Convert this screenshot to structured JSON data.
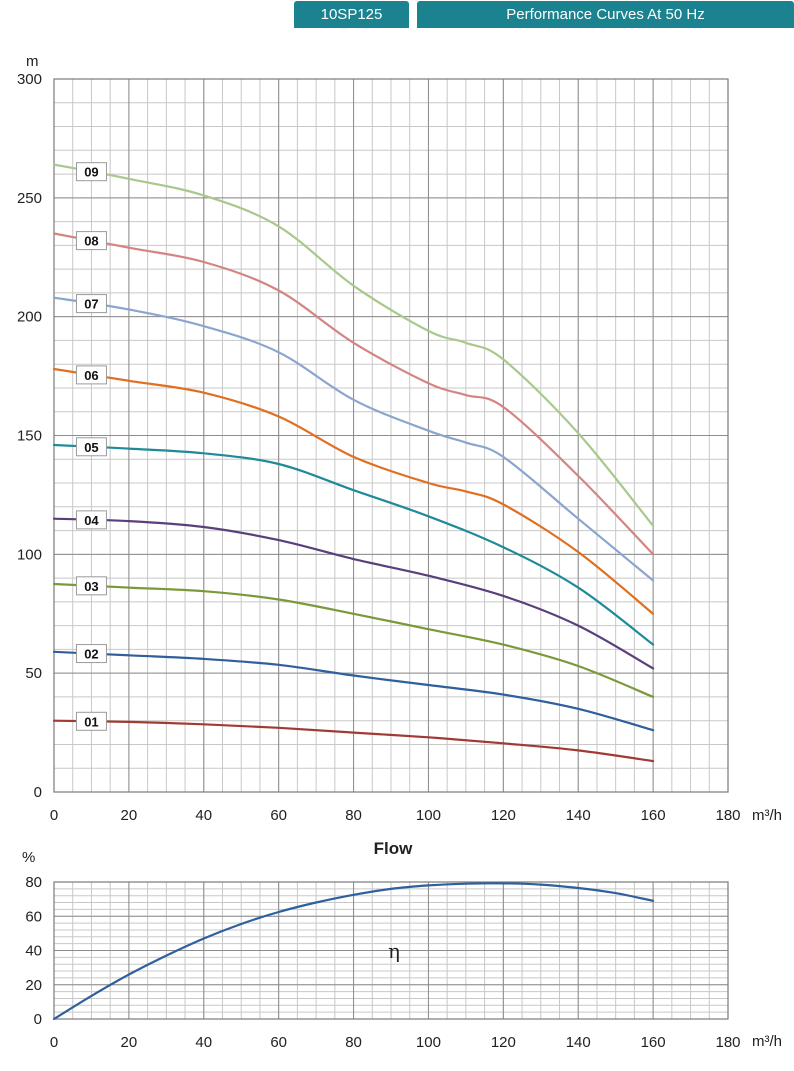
{
  "header": {
    "model": "10SP125",
    "title": "Performance Curves At 50 Hz"
  },
  "chart_data": [
    {
      "type": "line",
      "xlabel": "Flow",
      "x_unit": "m³/h",
      "y_unit": "m",
      "xlim": [
        0,
        180
      ],
      "ylim": [
        0,
        300
      ],
      "x_ticks": [
        0,
        20,
        40,
        60,
        80,
        100,
        120,
        140,
        160,
        180
      ],
      "y_ticks": [
        0,
        50,
        100,
        150,
        200,
        250,
        300
      ],
      "grid": true,
      "series": [
        {
          "name": "01",
          "color": "#a23a34",
          "x": [
            0,
            20,
            40,
            60,
            80,
            100,
            120,
            140,
            160
          ],
          "y": [
            30,
            29.5,
            28.5,
            27,
            25,
            23,
            20.5,
            17.5,
            13
          ]
        },
        {
          "name": "02",
          "color": "#2f5f9c",
          "x": [
            0,
            20,
            40,
            60,
            80,
            100,
            120,
            140,
            160
          ],
          "y": [
            59,
            57.5,
            56,
            53.5,
            49,
            45,
            41,
            35,
            26
          ]
        },
        {
          "name": "03",
          "color": "#7a9a3a",
          "x": [
            0,
            20,
            40,
            60,
            80,
            100,
            120,
            140,
            160
          ],
          "y": [
            87.5,
            86,
            84.5,
            81,
            75,
            68.5,
            62,
            53,
            40
          ]
        },
        {
          "name": "04",
          "color": "#5a3f7c",
          "x": [
            0,
            20,
            40,
            60,
            80,
            100,
            120,
            140,
            160
          ],
          "y": [
            115,
            114,
            111.5,
            106,
            98,
            91,
            82.5,
            70,
            52
          ]
        },
        {
          "name": "05",
          "color": "#1f8a9a",
          "x": [
            0,
            20,
            40,
            60,
            80,
            100,
            120,
            140,
            160
          ],
          "y": [
            146,
            144.5,
            142.5,
            138,
            127,
            116,
            103,
            86,
            62
          ]
        },
        {
          "name": "06",
          "color": "#e06f1f",
          "x": [
            0,
            20,
            40,
            60,
            80,
            100,
            110,
            120,
            140,
            160
          ],
          "y": [
            178,
            173,
            168,
            158,
            141,
            130,
            126.5,
            121,
            101,
            75
          ]
        },
        {
          "name": "07",
          "color": "#8aa6cf",
          "x": [
            0,
            20,
            40,
            60,
            80,
            100,
            110,
            120,
            140,
            160
          ],
          "y": [
            208,
            203,
            196,
            185,
            165,
            152,
            147,
            141,
            115,
            89
          ]
        },
        {
          "name": "08",
          "color": "#d48583",
          "x": [
            0,
            20,
            40,
            60,
            80,
            100,
            110,
            120,
            140,
            160
          ],
          "y": [
            235,
            229,
            223,
            211,
            189,
            172,
            167,
            162,
            133,
            100
          ]
        },
        {
          "name": "09",
          "color": "#a8c88c",
          "x": [
            0,
            20,
            40,
            60,
            80,
            100,
            110,
            120,
            140,
            160
          ],
          "y": [
            264,
            258,
            251,
            238,
            213,
            194,
            189,
            182,
            151,
            112
          ]
        }
      ]
    },
    {
      "type": "line",
      "x_unit": "m³/h",
      "y_unit": "%",
      "xlim": [
        0,
        180
      ],
      "ylim": [
        0,
        80
      ],
      "x_ticks": [
        0,
        20,
        40,
        60,
        80,
        100,
        120,
        140,
        160,
        180
      ],
      "y_ticks": [
        0,
        20,
        40,
        60,
        80
      ],
      "grid": true,
      "annotation": "η",
      "series": [
        {
          "color": "#2f5f9c",
          "x": [
            0,
            10,
            20,
            30,
            40,
            50,
            60,
            70,
            80,
            90,
            100,
            110,
            120,
            130,
            140,
            150,
            160
          ],
          "y": [
            0,
            13.5,
            26,
            37,
            47,
            55.5,
            62.5,
            68,
            72.5,
            76,
            78,
            79,
            79.2,
            78.5,
            76.5,
            73.5,
            69
          ]
        }
      ]
    }
  ]
}
